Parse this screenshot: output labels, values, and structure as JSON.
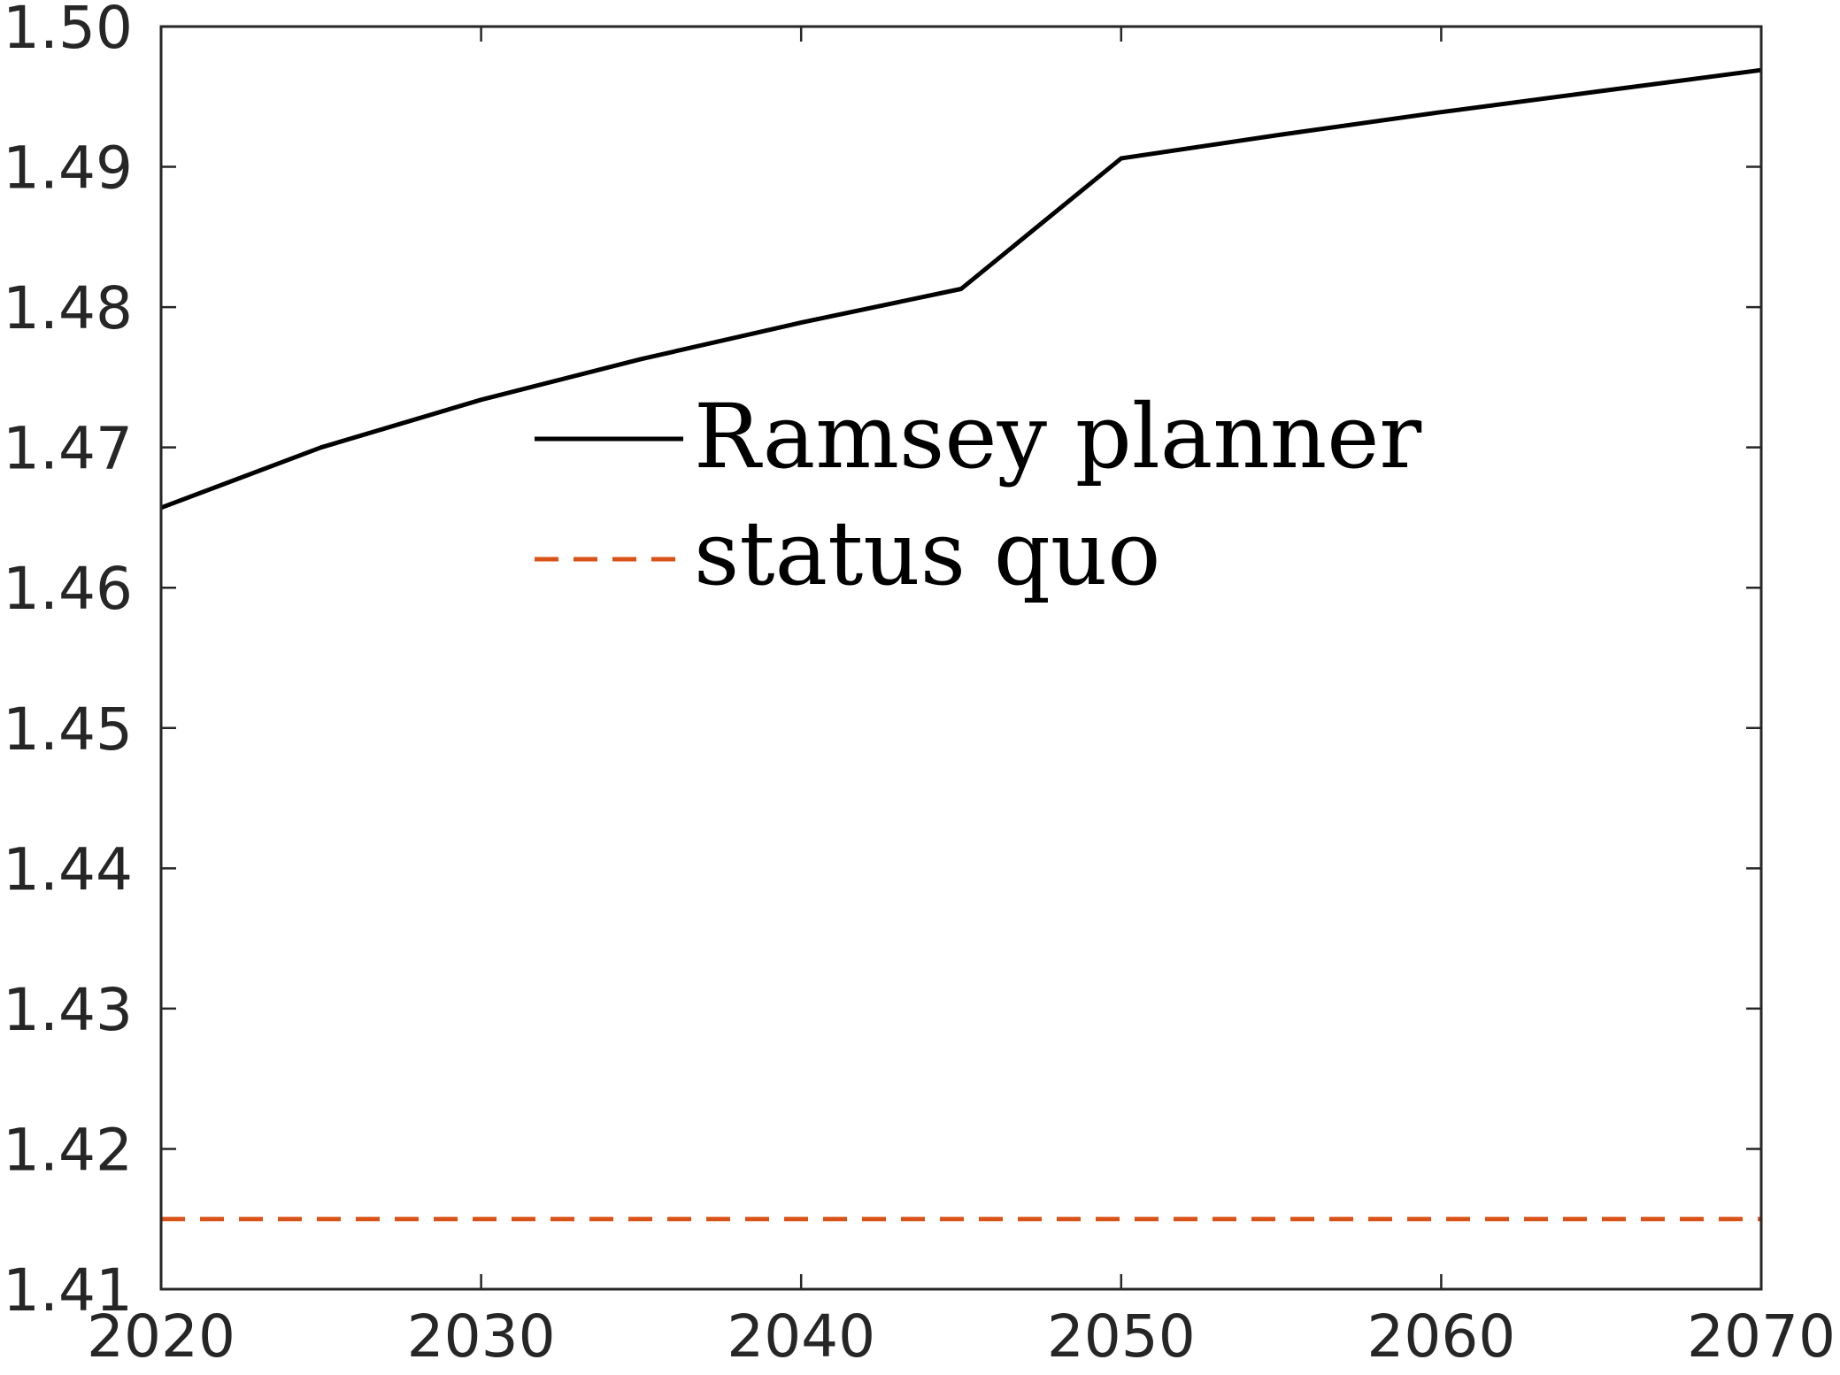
{
  "chart_data": {
    "type": "line",
    "title": "",
    "xlabel": "",
    "ylabel": "",
    "xlim": [
      2020,
      2070
    ],
    "ylim": [
      1.41,
      1.5
    ],
    "x_ticks": [
      "2020",
      "2030",
      "2040",
      "2050",
      "2060",
      "2070"
    ],
    "y_ticks": [
      "1.41",
      "1.42",
      "1.43",
      "1.44",
      "1.45",
      "1.46",
      "1.47",
      "1.48",
      "1.49",
      "1.50"
    ],
    "grid": false,
    "legend_position": "center-left",
    "series": [
      {
        "name": "Ramsey planner",
        "style": "solid",
        "color": "#000000",
        "x": [
          2020,
          2025,
          2030,
          2035,
          2040,
          2045,
          2050,
          2055,
          2060,
          2065,
          2070
        ],
        "y": [
          1.4657,
          1.47,
          1.4734,
          1.4763,
          1.4789,
          1.4813,
          1.4906,
          1.4923,
          1.4939,
          1.4954,
          1.4969
        ]
      },
      {
        "name": "status quo",
        "style": "dashed",
        "color": "#D95319",
        "x": [
          2020,
          2025,
          2030,
          2035,
          2040,
          2045,
          2050,
          2055,
          2060,
          2065,
          2070
        ],
        "y": [
          1.415,
          1.415,
          1.415,
          1.415,
          1.415,
          1.415,
          1.415,
          1.415,
          1.415,
          1.415,
          1.415
        ]
      }
    ]
  }
}
